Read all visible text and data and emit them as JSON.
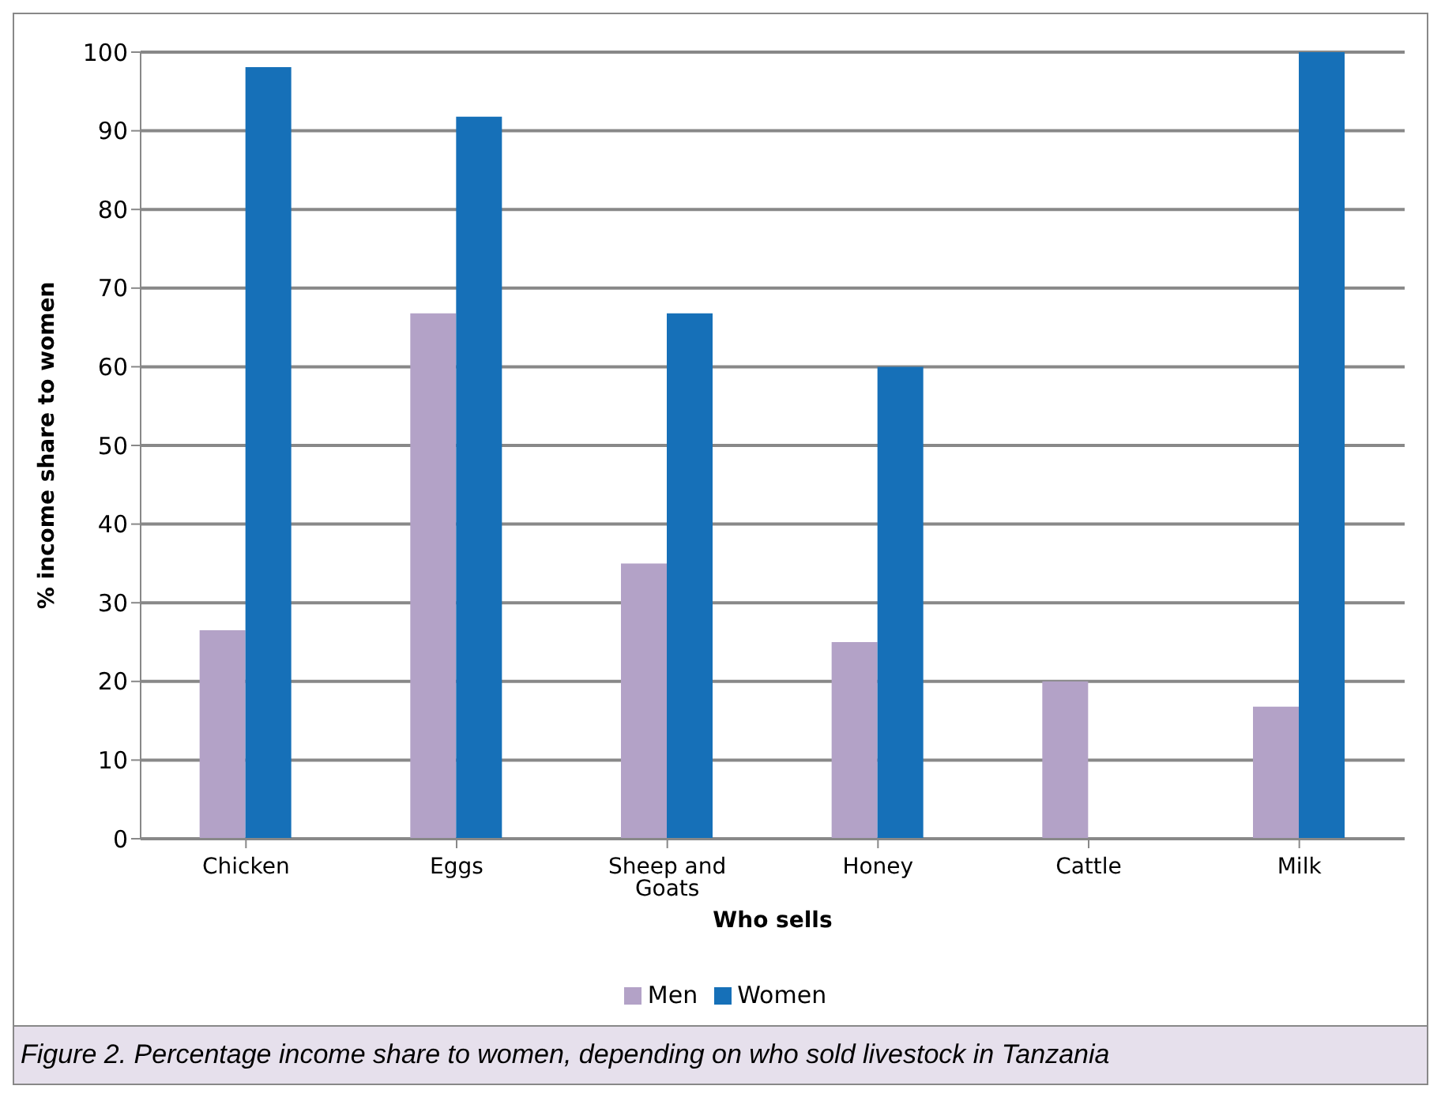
{
  "chart_data": {
    "type": "bar",
    "xlabel": "Who sells",
    "ylabel": "% income share to women",
    "categories": [
      "Chicken",
      "Eggs",
      "Sheep and Goats",
      "Honey",
      "Cattle",
      "Milk"
    ],
    "series": [
      {
        "name": "Men",
        "color": "#b3a2c7",
        "values": [
          26.5,
          66.8,
          35,
          25,
          20,
          16.8
        ]
      },
      {
        "name": "Women",
        "color": "#1670b8",
        "values": [
          98.1,
          91.8,
          66.8,
          60,
          null,
          100
        ]
      }
    ],
    "ylim": [
      0,
      100
    ],
    "yticks": [
      0,
      10,
      20,
      30,
      40,
      50,
      60,
      70,
      80,
      90,
      100
    ],
    "grid": "y",
    "legend": "bottom",
    "annotations": [
      "Figure 2. Percentage income share to women, depending on who sold livestock in Tanzania"
    ]
  }
}
